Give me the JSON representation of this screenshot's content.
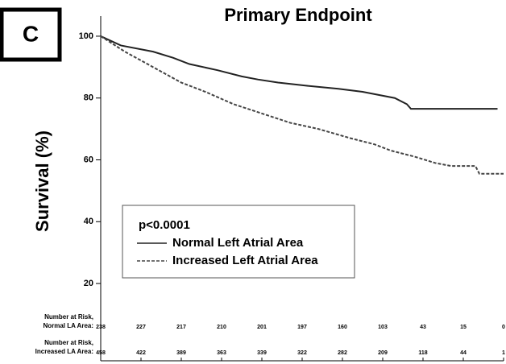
{
  "chart_data": {
    "type": "line",
    "panel_label": "C",
    "title": "Primary Endpoint",
    "y_label": "Survival (%)",
    "xlim": [
      0,
      10
    ],
    "xticks": [
      0,
      1,
      2,
      3,
      4,
      5,
      6,
      7,
      8,
      9,
      10
    ],
    "ylim": [
      -5,
      106.5
    ],
    "yticks": [
      20,
      40,
      60,
      80,
      100
    ],
    "annotation": "p<0.0001",
    "series": [
      {
        "name": "Normal Left Atrial Area",
        "color": "#222222",
        "dash": false,
        "x": [
          0,
          0.5,
          1.3,
          1.8,
          2.2,
          2.9,
          3.5,
          3.9,
          4.4,
          5.1,
          5.9,
          6.5,
          7.3,
          7.6,
          7.7,
          9.85
        ],
        "values": [
          100,
          97,
          95,
          93,
          91,
          89,
          87,
          86,
          85,
          84,
          83,
          82,
          80,
          78,
          76.5,
          76.5
        ]
      },
      {
        "name": "Increased Left Atrial Area",
        "color": "#444444",
        "dash": true,
        "x": [
          0,
          0.6,
          1.3,
          2.0,
          2.6,
          3.3,
          4.0,
          4.7,
          5.4,
          6.2,
          6.8,
          7.2,
          7.8,
          8.3,
          8.7,
          9.3,
          9.4,
          10
        ],
        "values": [
          100,
          95,
          90,
          85,
          82,
          78,
          75,
          72,
          70,
          67,
          65,
          63,
          61,
          59,
          58,
          58,
          55.5,
          55.5
        ]
      }
    ],
    "risk_table": [
      {
        "label": [
          "Number at Risk,",
          "Normal LA Area:"
        ],
        "values": [
          238,
          227,
          217,
          210,
          201,
          197,
          160,
          103,
          43,
          15,
          0
        ]
      },
      {
        "label": [
          "Number at Risk,",
          "Increased LA Area:"
        ],
        "values": [
          458,
          422,
          389,
          363,
          339,
          322,
          282,
          209,
          118,
          44,
          1
        ]
      }
    ]
  }
}
